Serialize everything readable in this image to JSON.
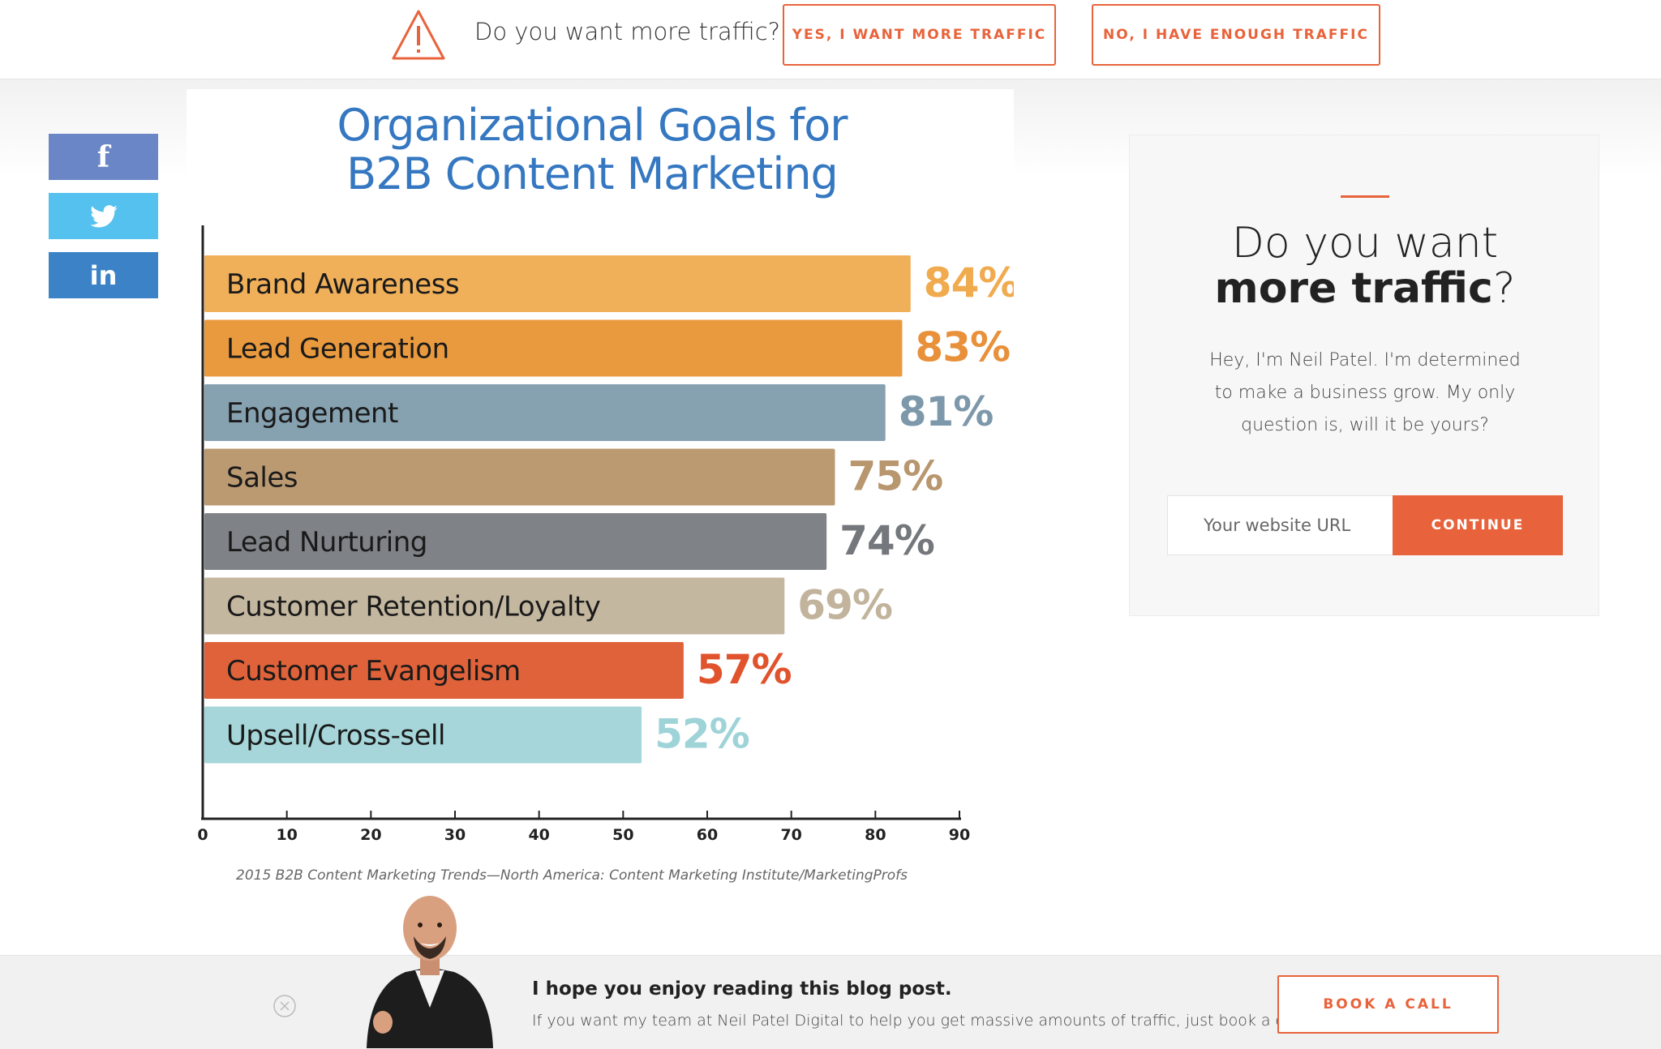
{
  "topbar": {
    "question": "Do you want more traffic?",
    "yes_label": "YES, I WANT MORE TRAFFIC",
    "no_label": "NO, I HAVE ENOUGH TRAFFIC",
    "icon": "warning-triangle-icon"
  },
  "social": {
    "facebook": "f",
    "linkedin": "in",
    "colors": {
      "facebook": "#6a86c6",
      "twitter": "#55c1ef",
      "linkedin": "#3b83c6"
    }
  },
  "chart_data": {
    "type": "bar",
    "orientation": "horizontal",
    "title_lines": [
      "Organizational Goals for",
      "B2B Content Marketing"
    ],
    "categories": [
      "Brand Awareness",
      "Lead Generation",
      "Engagement",
      "Sales",
      "Lead Nurturing",
      "Customer Retention/Loyalty",
      "Customer Evangelism",
      "Upsell/Cross-sell"
    ],
    "values": [
      84,
      83,
      81,
      75,
      74,
      69,
      57,
      52
    ],
    "value_labels": [
      "84%",
      "83%",
      "81%",
      "75%",
      "74%",
      "69%",
      "57%",
      "52%"
    ],
    "colors": [
      "#f0b05a",
      "#e99a3e",
      "#86a1b0",
      "#bb9a72",
      "#7f8286",
      "#c4b7a0",
      "#e0623a",
      "#a6d6d9"
    ],
    "label_colors": [
      "#f0ab4e",
      "#e8913a",
      "#7d98aa",
      "#b8966e",
      "#74777b",
      "#c2b49c",
      "#e0532d",
      "#9ed3d8"
    ],
    "xticks": [
      "0",
      "10",
      "20",
      "30",
      "40",
      "50",
      "60",
      "70",
      "80",
      "90"
    ],
    "xlim": [
      0,
      90
    ],
    "source": "2015 B2B Content Marketing Trends—North America: Content Marketing Institute/MarketingProfs"
  },
  "side_panel": {
    "heading_line1": "Do you want",
    "heading_bold": "more traffic",
    "heading_end": "?",
    "description": "Hey, I'm Neil Patel. I'm determined to make a business grow. My only question is, will it be yours?",
    "url_placeholder": "Your website URL",
    "continue_label": "CONTINUE",
    "accent_color": "#e8633b"
  },
  "bottombar": {
    "title": "I hope you enjoy reading this blog post.",
    "text": "If you want my team at Neil Patel Digital to help you get massive amounts of traffic, just book a call.",
    "book_label": "BOOK A CALL"
  }
}
